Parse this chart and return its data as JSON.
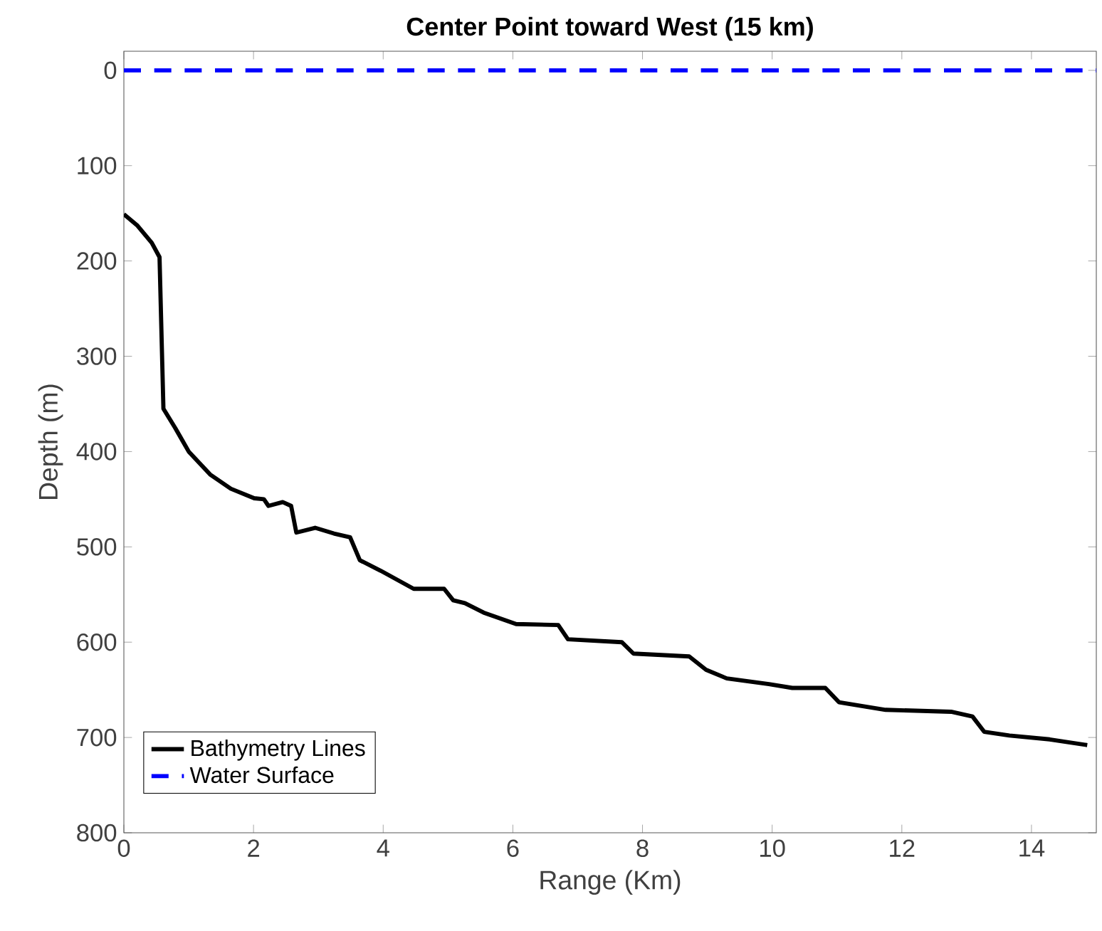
{
  "chart_data": {
    "type": "line",
    "title": "Center Point toward West (15 km)",
    "xlabel": "Range (Km)",
    "ylabel": "Depth (m)",
    "xlim": [
      0,
      15
    ],
    "ylim": [
      800,
      -20
    ],
    "xticks": [
      0,
      2,
      4,
      6,
      8,
      10,
      12,
      14
    ],
    "yticks": [
      0,
      100,
      200,
      300,
      400,
      500,
      600,
      700,
      800
    ],
    "grid": false,
    "legend": "bottom left",
    "marker": "none",
    "series": [
      {
        "name": "Bathymetry Lines",
        "color": "#000000",
        "line_style": "solid",
        "x": [
          0,
          0.21,
          0.43,
          0.55,
          0.61,
          0.79,
          1.0,
          1.33,
          1.65,
          2.01,
          2.16,
          2.23,
          2.45,
          2.58,
          2.66,
          2.95,
          3.24,
          3.49,
          3.64,
          3.96,
          4.47,
          4.94,
          5.08,
          5.26,
          5.55,
          6.05,
          6.7,
          6.85,
          7.68,
          7.86,
          8.72,
          8.98,
          9.3,
          9.95,
          10.31,
          10.82,
          11.03,
          11.75,
          12.76,
          13.09,
          13.27,
          13.66,
          14.28,
          14.86
        ],
        "values": [
          151,
          163,
          181,
          196,
          355,
          375,
          400,
          424,
          439,
          449,
          450,
          457,
          453,
          457,
          485,
          480,
          486,
          490,
          514,
          525,
          544,
          544,
          556,
          559,
          569,
          581,
          582,
          597,
          600,
          612,
          615,
          629,
          638,
          644,
          648,
          648,
          663,
          671,
          673,
          678,
          694,
          698,
          702,
          708
        ]
      },
      {
        "name": "Water Surface",
        "color": "#0000ff",
        "line_style": "dashed",
        "x": [
          0,
          15
        ],
        "values": [
          0,
          0
        ]
      }
    ]
  }
}
